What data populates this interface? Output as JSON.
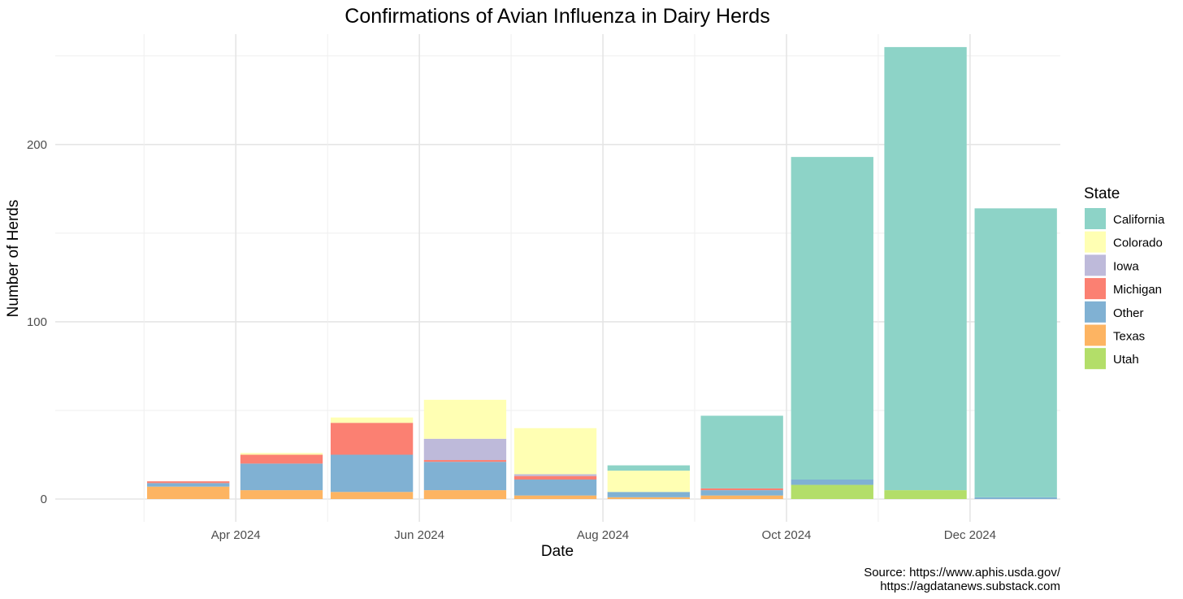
{
  "chart_data": {
    "type": "bar",
    "stacked": true,
    "title": "Confirmations of Avian Influenza in Dairy Herds",
    "xlabel": "Date",
    "ylabel": "Number of Herds",
    "x_ticks": [
      {
        "label": "Apr 2024",
        "date": "2024-04-01"
      },
      {
        "label": "Jun 2024",
        "date": "2024-06-01"
      },
      {
        "label": "Aug 2024",
        "date": "2024-08-01"
      },
      {
        "label": "Oct 2024",
        "date": "2024-10-01"
      },
      {
        "label": "Dec 2024",
        "date": "2024-12-01"
      }
    ],
    "x_range": [
      "2024-02-01",
      "2024-12-31"
    ],
    "y_ticks": [
      0,
      100,
      200
    ],
    "ylim": [
      0,
      260
    ],
    "grid": true,
    "legend": {
      "title": "State",
      "position": "right"
    },
    "categories": [
      "2024-03-01",
      "2024-04-01",
      "2024-05-01",
      "2024-06-01",
      "2024-07-01",
      "2024-08-01",
      "2024-09-01",
      "2024-10-01",
      "2024-11-01",
      "2024-12-01"
    ],
    "series": [
      {
        "name": "Utah",
        "color": "#B3DE69",
        "values": [
          0,
          0,
          0,
          0,
          0,
          0,
          0,
          8,
          5,
          0
        ]
      },
      {
        "name": "Texas",
        "color": "#FDB462",
        "values": [
          7,
          5,
          4,
          5,
          2,
          1,
          2,
          0,
          0,
          0
        ]
      },
      {
        "name": "Other",
        "color": "#80B1D3",
        "values": [
          2,
          15,
          21,
          16,
          9,
          3,
          3,
          3,
          0,
          1
        ]
      },
      {
        "name": "Michigan",
        "color": "#FB8072",
        "values": [
          1,
          5,
          18,
          1,
          2,
          0,
          1,
          0,
          0,
          0
        ]
      },
      {
        "name": "Iowa",
        "color": "#BEBADA",
        "values": [
          0,
          0,
          0,
          12,
          1,
          0,
          0,
          0,
          0,
          0
        ]
      },
      {
        "name": "Colorado",
        "color": "#FFFFB3",
        "values": [
          0,
          1,
          3,
          22,
          26,
          12,
          0,
          0,
          0,
          0
        ]
      },
      {
        "name": "California",
        "color": "#8DD3C7",
        "values": [
          0,
          0,
          0,
          0,
          0,
          3,
          41,
          182,
          250,
          163
        ]
      }
    ],
    "legend_order": [
      "California",
      "Colorado",
      "Iowa",
      "Michigan",
      "Other",
      "Texas",
      "Utah"
    ],
    "caption": [
      "Source: https://www.aphis.usda.gov/",
      "https://agdatanews.substack.com"
    ]
  }
}
